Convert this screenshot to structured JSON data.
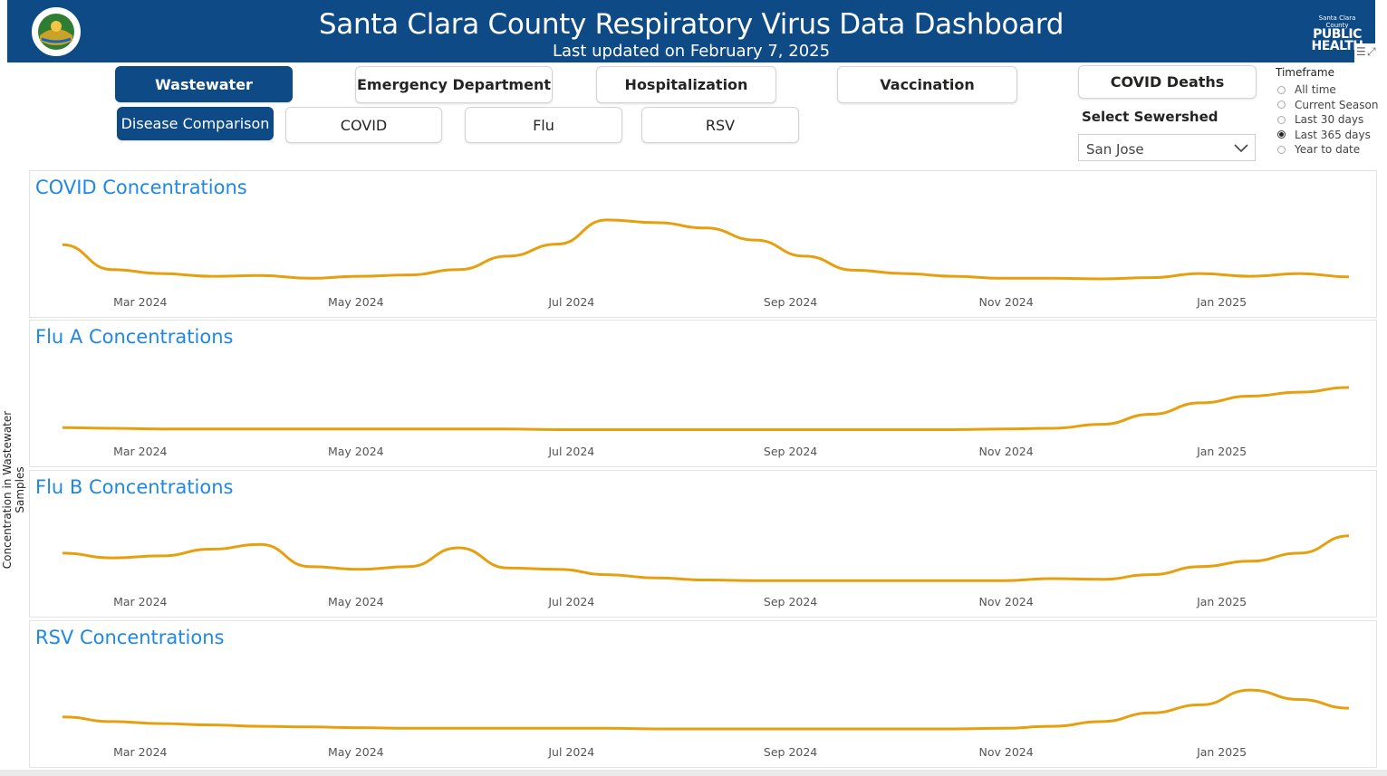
{
  "header": {
    "title": "Santa Clara County Respiratory Virus Data Dashboard",
    "subtitle": "Last updated on February 7, 2025",
    "seal_text": "THE COUNTY OF SANTA CLARA",
    "logo_small": "Santa Clara County",
    "logo_line1": "PUBLIC",
    "logo_line2": "HEALTH"
  },
  "nav": {
    "main_tabs": [
      {
        "label": "Wastewater",
        "active": true
      },
      {
        "label": "Emergency Department",
        "active": false
      },
      {
        "label": "Hospitalization",
        "active": false
      },
      {
        "label": "Vaccination",
        "active": false
      },
      {
        "label": "COVID Deaths",
        "active": false
      }
    ],
    "sub_tabs": [
      {
        "label": "Disease Comparison",
        "active": true
      },
      {
        "label": "COVID",
        "active": false
      },
      {
        "label": "Flu",
        "active": false
      },
      {
        "label": "RSV",
        "active": false
      }
    ]
  },
  "sewershed": {
    "label": "Select Sewershed",
    "value": "San Jose"
  },
  "timeframe": {
    "title": "Timeframe",
    "options": [
      "All time",
      "Current Season",
      "Last 30 days",
      "Last 365 days",
      "Year to date"
    ],
    "selected": "Last 365 days"
  },
  "y_axis_label": "Concentration in Wastewater Samples",
  "colors": {
    "brand": "#0d4a86",
    "line": "#e6a00f",
    "panel_title": "#1e88e5"
  },
  "chart_data": [
    {
      "type": "line",
      "title": "COVID Concentrations",
      "x_ticks": [
        "Mar 2024",
        "May 2024",
        "Jul 2024",
        "Sep 2024",
        "Nov 2024",
        "Jan 2025"
      ],
      "x": [
        "2024-02-08",
        "2024-02-22",
        "2024-03-07",
        "2024-03-21",
        "2024-04-04",
        "2024-04-18",
        "2024-05-02",
        "2024-05-16",
        "2024-05-30",
        "2024-06-13",
        "2024-06-27",
        "2024-07-11",
        "2024-07-25",
        "2024-08-08",
        "2024-08-22",
        "2024-09-05",
        "2024-09-19",
        "2024-10-03",
        "2024-10-17",
        "2024-10-31",
        "2024-11-14",
        "2024-11-28",
        "2024-12-12",
        "2024-12-26",
        "2025-01-09",
        "2025-01-23",
        "2025-02-06"
      ],
      "series": [
        {
          "values": [
            0.55,
            0.18,
            0.12,
            0.08,
            0.09,
            0.05,
            0.08,
            0.1,
            0.18,
            0.38,
            0.56,
            0.92,
            0.88,
            0.8,
            0.62,
            0.38,
            0.17,
            0.12,
            0.08,
            0.05,
            0.05,
            0.04,
            0.06,
            0.12,
            0.08,
            0.12,
            0.07
          ]
        }
      ],
      "ylim": [
        0,
        1
      ]
    },
    {
      "type": "line",
      "title": "Flu A Concentrations",
      "x_ticks": [
        "Mar 2024",
        "May 2024",
        "Jul 2024",
        "Sep 2024",
        "Nov 2024",
        "Jan 2025"
      ],
      "x": [
        "2024-02-08",
        "2024-02-22",
        "2024-03-07",
        "2024-03-21",
        "2024-04-04",
        "2024-04-18",
        "2024-05-02",
        "2024-05-16",
        "2024-05-30",
        "2024-06-13",
        "2024-06-27",
        "2024-07-11",
        "2024-07-25",
        "2024-08-08",
        "2024-08-22",
        "2024-09-05",
        "2024-09-19",
        "2024-10-03",
        "2024-10-17",
        "2024-10-31",
        "2024-11-14",
        "2024-11-28",
        "2024-12-12",
        "2024-12-26",
        "2025-01-09",
        "2025-01-23",
        "2025-02-06"
      ],
      "series": [
        {
          "values": [
            0.05,
            0.04,
            0.03,
            0.03,
            0.03,
            0.03,
            0.03,
            0.03,
            0.03,
            0.03,
            0.02,
            0.02,
            0.02,
            0.02,
            0.02,
            0.02,
            0.02,
            0.02,
            0.02,
            0.03,
            0.04,
            0.1,
            0.25,
            0.42,
            0.52,
            0.58,
            0.65
          ]
        }
      ],
      "ylim": [
        0,
        1
      ]
    },
    {
      "type": "line",
      "title": "Flu B Concentrations",
      "x_ticks": [
        "Mar 2024",
        "May 2024",
        "Jul 2024",
        "Sep 2024",
        "Nov 2024",
        "Jan 2025"
      ],
      "x": [
        "2024-02-08",
        "2024-02-22",
        "2024-03-07",
        "2024-03-21",
        "2024-04-04",
        "2024-04-18",
        "2024-05-02",
        "2024-05-16",
        "2024-05-30",
        "2024-06-13",
        "2024-06-27",
        "2024-07-11",
        "2024-07-25",
        "2024-08-08",
        "2024-08-22",
        "2024-09-05",
        "2024-09-19",
        "2024-10-03",
        "2024-10-17",
        "2024-10-31",
        "2024-11-14",
        "2024-11-28",
        "2024-12-12",
        "2024-12-26",
        "2025-01-09",
        "2025-01-23",
        "2025-02-06"
      ],
      "series": [
        {
          "values": [
            0.42,
            0.35,
            0.38,
            0.48,
            0.55,
            0.22,
            0.18,
            0.22,
            0.5,
            0.2,
            0.18,
            0.1,
            0.05,
            0.02,
            0.01,
            0.01,
            0.01,
            0.01,
            0.01,
            0.01,
            0.04,
            0.03,
            0.1,
            0.22,
            0.3,
            0.42,
            0.68
          ]
        }
      ],
      "ylim": [
        0,
        1
      ]
    },
    {
      "type": "line",
      "title": "RSV Concentrations",
      "x_ticks": [
        "Mar 2024",
        "May 2024",
        "Jul 2024",
        "Sep 2024",
        "Nov 2024",
        "Jan 2025"
      ],
      "x": [
        "2024-02-08",
        "2024-02-22",
        "2024-03-07",
        "2024-03-21",
        "2024-04-04",
        "2024-04-18",
        "2024-05-02",
        "2024-05-16",
        "2024-05-30",
        "2024-06-13",
        "2024-06-27",
        "2024-07-11",
        "2024-07-25",
        "2024-08-08",
        "2024-08-22",
        "2024-09-05",
        "2024-09-19",
        "2024-10-03",
        "2024-10-17",
        "2024-10-31",
        "2024-11-14",
        "2024-11-28",
        "2024-12-12",
        "2024-12-26",
        "2025-01-09",
        "2025-01-23",
        "2025-02-06"
      ],
      "series": [
        {
          "values": [
            0.22,
            0.15,
            0.12,
            0.1,
            0.08,
            0.07,
            0.06,
            0.05,
            0.05,
            0.05,
            0.05,
            0.05,
            0.04,
            0.04,
            0.04,
            0.04,
            0.04,
            0.04,
            0.04,
            0.05,
            0.08,
            0.15,
            0.28,
            0.4,
            0.62,
            0.48,
            0.35
          ]
        }
      ],
      "ylim": [
        0,
        1
      ]
    }
  ]
}
